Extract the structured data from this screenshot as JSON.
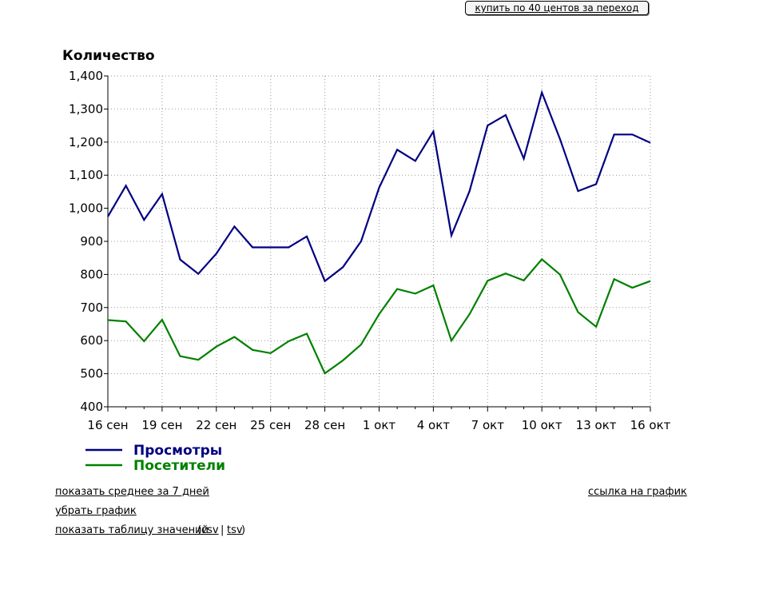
{
  "header": {
    "buy_button_label": "купить по 40 центов за переход"
  },
  "chart_data": {
    "type": "line",
    "ylabel": "Количество",
    "ylim": [
      400,
      1400
    ],
    "yticks": [
      400,
      500,
      600,
      700,
      800,
      900,
      1000,
      1100,
      1200,
      1300,
      1400
    ],
    "ytick_labels": [
      "400",
      "500",
      "600",
      "700",
      "800",
      "900",
      "1,000",
      "1,100",
      "1,200",
      "1,300",
      "1,400"
    ],
    "x": [
      "16 сен",
      "17 сен",
      "18 сен",
      "19 сен",
      "20 сен",
      "21 сен",
      "22 сен",
      "23 сен",
      "24 сен",
      "25 сен",
      "26 сен",
      "27 сен",
      "28 сен",
      "29 сен",
      "30 сен",
      "1 окт",
      "2 окт",
      "3 окт",
      "4 окт",
      "5 окт",
      "6 окт",
      "7 окт",
      "8 окт",
      "9 окт",
      "10 окт",
      "11 окт",
      "12 окт",
      "13 окт",
      "14 окт",
      "15 окт",
      "16 окт"
    ],
    "xtick_labels": [
      "16 сен",
      "19 сен",
      "22 сен",
      "25 сен",
      "28 сен",
      "1 окт",
      "4 окт",
      "7 окт",
      "10 окт",
      "13 окт",
      "16 окт"
    ],
    "grid": true,
    "legend_position": "bottom-left",
    "series": [
      {
        "name": "Просмотры",
        "color": "#000080",
        "values": [
          975,
          1068,
          965,
          1043,
          845,
          802,
          863,
          945,
          882,
          882,
          882,
          915,
          780,
          822,
          900,
          1062,
          1177,
          1143,
          1232,
          918,
          1052,
          1250,
          1282,
          1150,
          1350,
          1210,
          1052,
          1073,
          1223,
          1223,
          1198
        ]
      },
      {
        "name": "Посетители",
        "color": "#008000",
        "values": [
          662,
          658,
          598,
          663,
          553,
          542,
          582,
          611,
          572,
          562,
          598,
          621,
          501,
          540,
          588,
          680,
          756,
          742,
          767,
          600,
          680,
          781,
          803,
          782,
          846,
          800,
          686,
          642,
          786,
          760,
          780
        ]
      }
    ]
  },
  "links": {
    "avg7": "показать среднее за 7 дней",
    "remove": "убрать график",
    "table": "показать таблицу значений",
    "paren_open": "(",
    "csv": "csv",
    "sep": "|",
    "tsv": "tsv",
    "paren_close": ")",
    "chart_link": "ссылка на график"
  }
}
